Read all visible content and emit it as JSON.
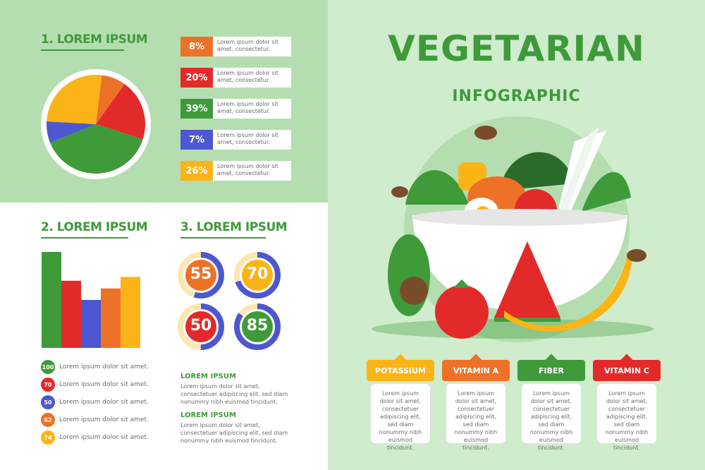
{
  "colors": {
    "green": "#3f9a3a",
    "red": "#e32a2a",
    "orange": "#ee7128",
    "blue": "#4d57cf",
    "yellow": "#fbb417",
    "light_green_panel": "#b5deb0",
    "mint_panel": "#cfeccd"
  },
  "header": {
    "title": "VEGETARIAN",
    "subtitle": "INFOGRAPHIC"
  },
  "section1": {
    "title": "1. LOREM IPSUM",
    "stats": [
      {
        "pct": "8%",
        "color": "#ee7128",
        "text": "Lorem ipsum dolor sit amet, consectetur."
      },
      {
        "pct": "20%",
        "color": "#e32a2a",
        "text": "Lorem ipsum dolor sit amet, consectetur."
      },
      {
        "pct": "39%",
        "color": "#3f9a3a",
        "text": "Lorem ipsum dolor sit amet, consectetur."
      },
      {
        "pct": "7%",
        "color": "#4d57cf",
        "text": "Lorem ipsum dolor sit amet, consectetur."
      },
      {
        "pct": "26%",
        "color": "#fbb417",
        "text": "Lorem ipsum dolor sit amet, consectetur."
      }
    ]
  },
  "section2": {
    "title": "2. LOREM IPSUM",
    "legend": [
      {
        "value": "100",
        "color": "#3f9a3a",
        "text": "Lorem ipsum dolor sit amet."
      },
      {
        "value": "70",
        "color": "#e32a2a",
        "text": "Lorem ipsum dolor sit amet."
      },
      {
        "value": "50",
        "color": "#4d57cf",
        "text": "Lorem ipsum dolor sit amet."
      },
      {
        "value": "62",
        "color": "#ee7128",
        "text": "Lorem ipsum dolor sit amet."
      },
      {
        "value": "74",
        "color": "#fbb417",
        "text": "Lorem ipsum dolor sit amet."
      }
    ]
  },
  "section3": {
    "title": "3. LOREM IPSUM",
    "rings": [
      {
        "value": "55",
        "percent": 55,
        "ring_color": "#4d57cf",
        "inner_color": "#ee7128",
        "track_color": "#fde7b0"
      },
      {
        "value": "70",
        "percent": 70,
        "ring_color": "#4d57cf",
        "inner_color": "#fbb417",
        "track_color": "#fde7b0"
      },
      {
        "value": "50",
        "percent": 50,
        "ring_color": "#4d57cf",
        "inner_color": "#e32a2a",
        "track_color": "#fde7b0"
      },
      {
        "value": "85",
        "percent": 85,
        "ring_color": "#4d57cf",
        "inner_color": "#3f9a3a",
        "track_color": "#fde7b0"
      }
    ],
    "notes": [
      {
        "title": "LOREM IPSUM",
        "body": "Lorem ipsum dolor sit amet, consectetuer adipiscing elit, sed diam nonummy nibh euismod tincidunt."
      },
      {
        "title": "LOREM IPSUM",
        "body": "Lorem ipsum dolor sit amet, consectetuer adipiscing elit, sed diam nonummy nibh euismod tincidunt."
      }
    ]
  },
  "cards": [
    {
      "label": "POTASSIUM",
      "color": "#fbb417",
      "text": "Lorem ipsum dolor sit amet, consectetuer adipiscing elit, sed diam nonummy nibh euismod tincidunt."
    },
    {
      "label": "VITAMIN A",
      "color": "#ee7128",
      "text": "Lorem ipsum dolor sit amet, consectetuer adipiscing elit, sed diam nonummy nibh euismod tincidunt."
    },
    {
      "label": "FIBER",
      "color": "#3f9a3a",
      "text": "Lorem ipsum dolor sit amet, consectetuer adipiscing elit, sed diam nonummy nibh euismod tincidunt."
    },
    {
      "label": "VITAMIN C",
      "color": "#e32a2a",
      "text": "Lorem ipsum dolor sit amet, consectetuer adipiscing elit, sed diam nonummy nibh euismod tincidunt."
    }
  ],
  "chart_data": [
    {
      "type": "pie",
      "values": [
        8,
        20,
        39,
        7,
        26
      ],
      "colors": [
        "#ee7128",
        "#e32a2a",
        "#3f9a3a",
        "#4d57cf",
        "#fbb417"
      ]
    },
    {
      "type": "bar",
      "values": [
        100,
        70,
        50,
        62,
        74
      ],
      "colors": [
        "#3f9a3a",
        "#e32a2a",
        "#4d57cf",
        "#ee7128",
        "#fbb417"
      ],
      "ylim": [
        0,
        100
      ]
    }
  ]
}
